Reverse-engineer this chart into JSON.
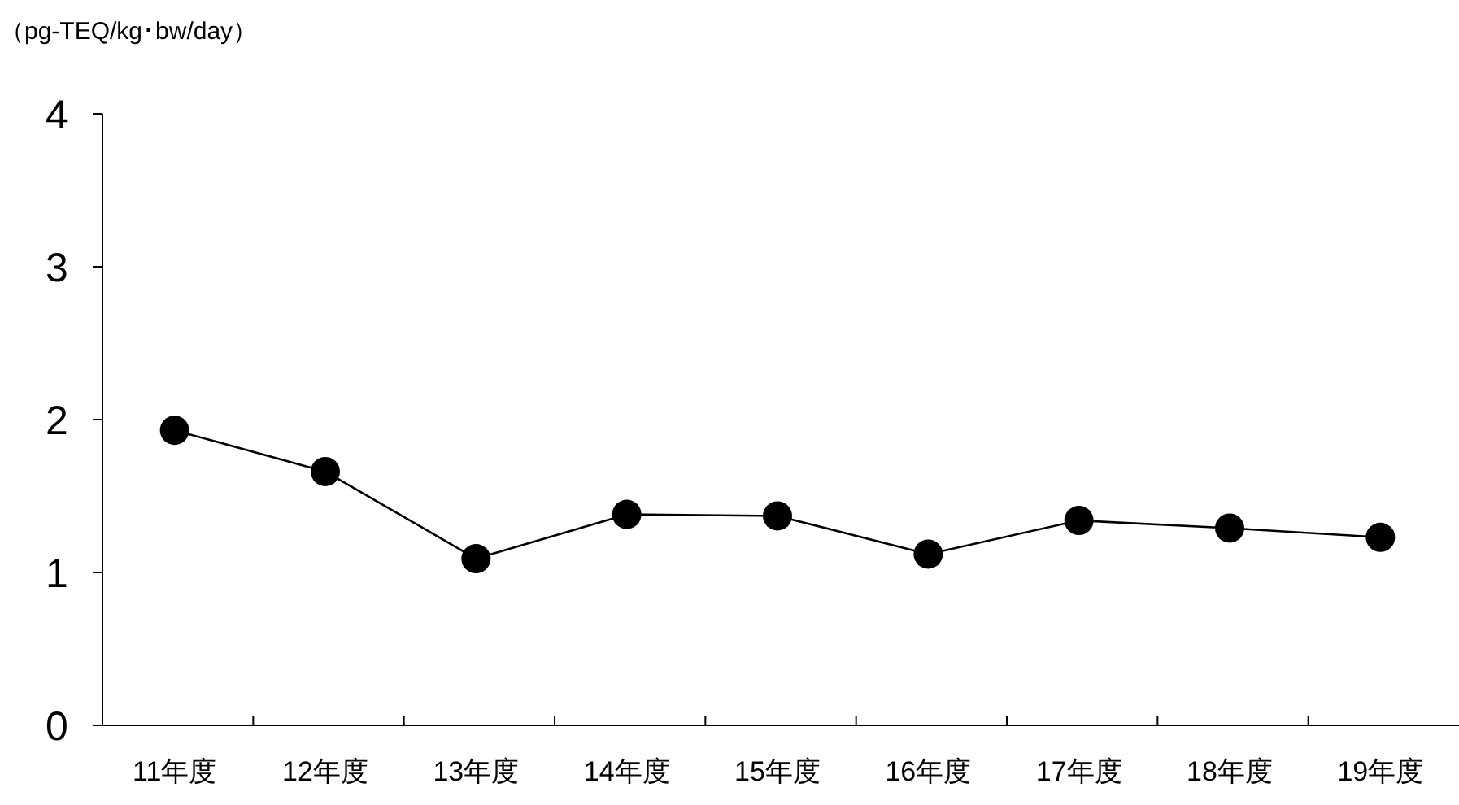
{
  "chart_data": {
    "type": "line",
    "ylabel": "（pg-TEQ/kg･bw/day）",
    "categories": [
      "11年度",
      "12年度",
      "13年度",
      "14年度",
      "15年度",
      "16年度",
      "17年度",
      "18年度",
      "19年度"
    ],
    "values": [
      1.93,
      1.66,
      1.09,
      1.38,
      1.37,
      1.12,
      1.34,
      1.29,
      1.23
    ],
    "color": "#000000",
    "marker": "circle",
    "line_style": "solid",
    "ylim": [
      0,
      4
    ],
    "yticks": [
      0,
      1,
      2,
      3,
      4
    ]
  }
}
